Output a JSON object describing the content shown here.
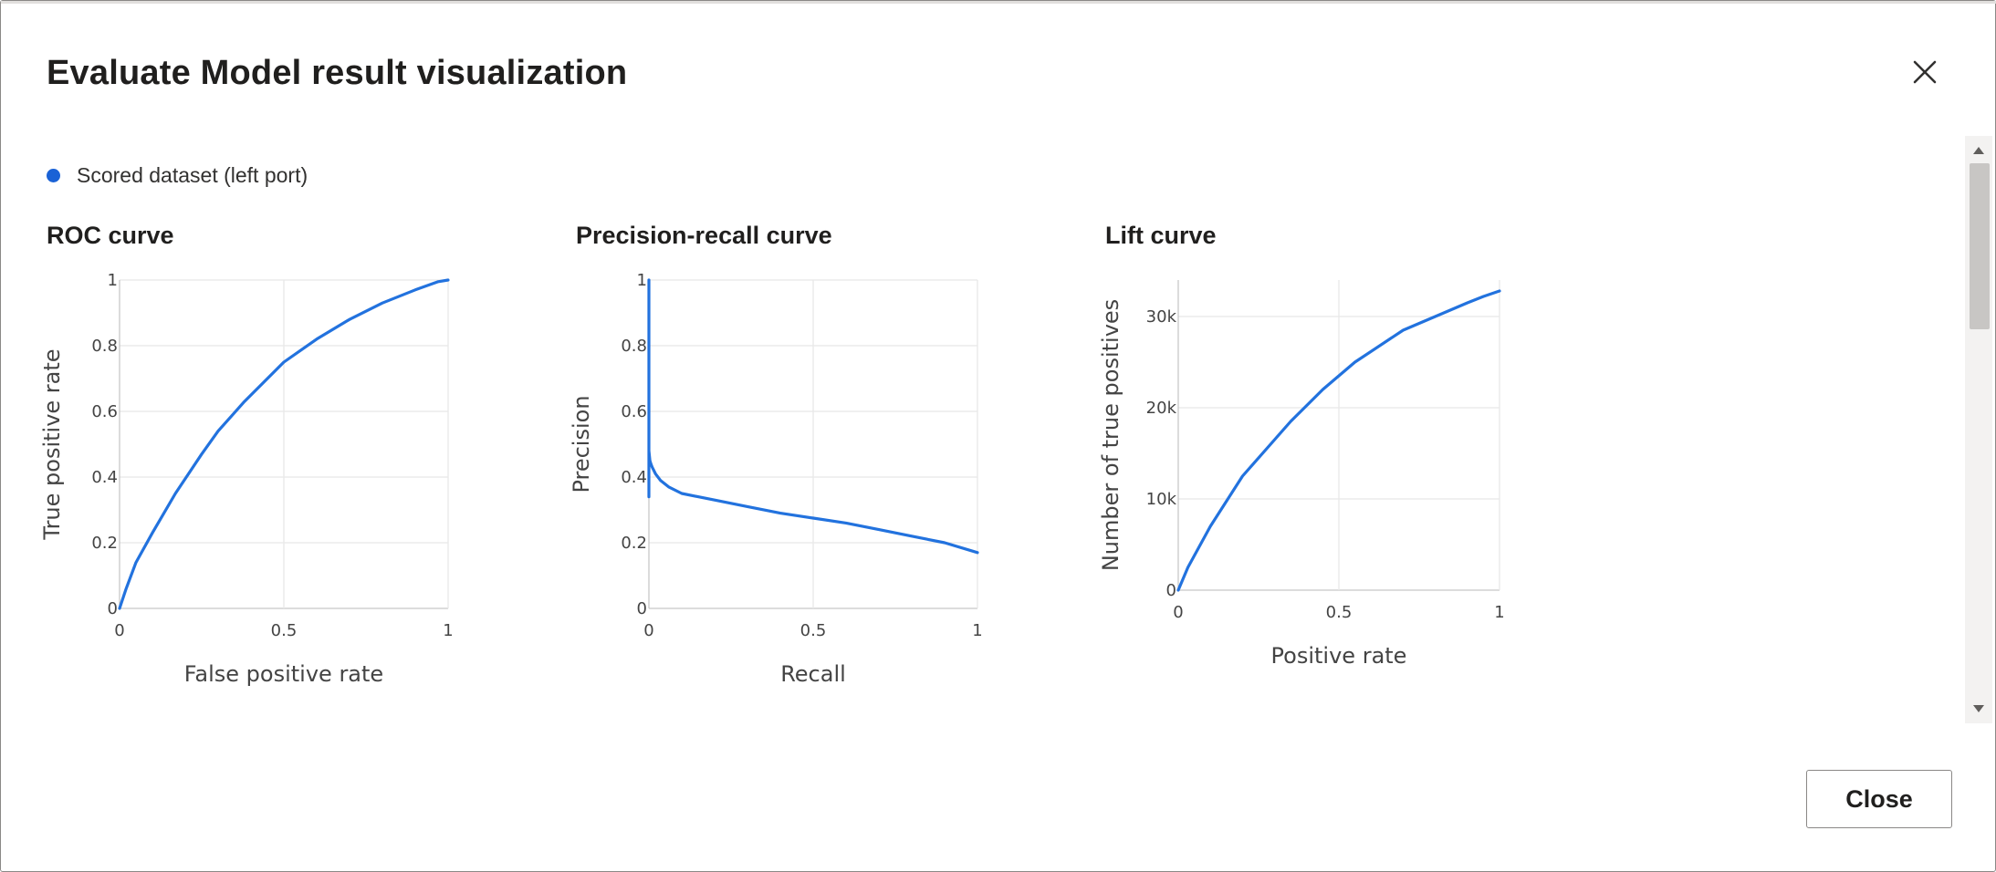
{
  "dialog": {
    "title": "Evaluate Model result visualization",
    "close_icon": "close-icon",
    "close_button_label": "Close"
  },
  "legend": {
    "label": "Scored dataset (left port)",
    "color": "#1a62d6"
  },
  "colors": {
    "curve": "#2272de",
    "grid": "#e8e8e8",
    "axis": "#c8c8c8",
    "tick_text": "#444444",
    "label_text": "#444444"
  },
  "scrollbar": {
    "up_icon": "chevron-up-icon",
    "down_icon": "chevron-down-icon"
  },
  "chart_data": [
    {
      "type": "line",
      "title": "ROC curve",
      "xlabel": "False positive rate",
      "ylabel": "True positive rate",
      "xlim": [
        0,
        1
      ],
      "ylim": [
        0,
        1
      ],
      "x_ticks": [
        0,
        0.5,
        1
      ],
      "x_tick_labels": [
        "0",
        "0.5",
        "1"
      ],
      "y_ticks": [
        0,
        0.2,
        0.4,
        0.6,
        0.8,
        1
      ],
      "y_tick_labels": [
        "0",
        "0.2",
        "0.4",
        "0.6",
        "0.8",
        "1"
      ],
      "grid": true,
      "series": [
        {
          "x": [
            0,
            0.02,
            0.05,
            0.1,
            0.17,
            0.25,
            0.3,
            0.38,
            0.5,
            0.6,
            0.7,
            0.8,
            0.9,
            0.97,
            1
          ],
          "y": [
            0,
            0.06,
            0.14,
            0.23,
            0.35,
            0.47,
            0.54,
            0.63,
            0.75,
            0.82,
            0.88,
            0.93,
            0.97,
            0.995,
            1
          ]
        }
      ]
    },
    {
      "type": "line",
      "title": "Precision-recall curve",
      "xlabel": "Recall",
      "ylabel": "Precision",
      "xlim": [
        0,
        1
      ],
      "ylim": [
        0,
        1
      ],
      "x_ticks": [
        0,
        0.5,
        1
      ],
      "x_tick_labels": [
        "0",
        "0.5",
        "1"
      ],
      "y_ticks": [
        0,
        0.2,
        0.4,
        0.6,
        0.8,
        1
      ],
      "y_tick_labels": [
        "0",
        "0.2",
        "0.4",
        "0.6",
        "0.8",
        "1"
      ],
      "grid": true,
      "series": [
        {
          "x": [
            0,
            0,
            0,
            0.003,
            0.006,
            0.01,
            0.02,
            0.035,
            0.06,
            0.1,
            0.2,
            0.3,
            0.4,
            0.5,
            0.6,
            0.7,
            0.8,
            0.9,
            1
          ],
          "y": [
            1,
            0.34,
            0.48,
            0.45,
            0.44,
            0.43,
            0.41,
            0.39,
            0.37,
            0.35,
            0.33,
            0.31,
            0.29,
            0.275,
            0.26,
            0.24,
            0.22,
            0.2,
            0.17
          ]
        }
      ]
    },
    {
      "type": "line",
      "title": "Lift curve",
      "xlabel": "Positive rate",
      "ylabel": "Number of true positives",
      "xlim": [
        0,
        1
      ],
      "ylim": [
        0,
        34000
      ],
      "x_ticks": [
        0,
        0.5,
        1
      ],
      "x_tick_labels": [
        "0",
        "0.5",
        "1"
      ],
      "y_ticks": [
        0,
        10000,
        20000,
        30000
      ],
      "y_tick_labels": [
        "0",
        "10k",
        "20k",
        "30k"
      ],
      "grid": true,
      "series": [
        {
          "x": [
            0,
            0.03,
            0.1,
            0.2,
            0.3,
            0.35,
            0.45,
            0.55,
            0.7,
            0.8,
            0.9,
            0.95,
            1
          ],
          "y": [
            0,
            2500,
            7000,
            12500,
            16500,
            18500,
            22000,
            25000,
            28500,
            30000,
            31500,
            32200,
            32800
          ]
        }
      ]
    }
  ]
}
